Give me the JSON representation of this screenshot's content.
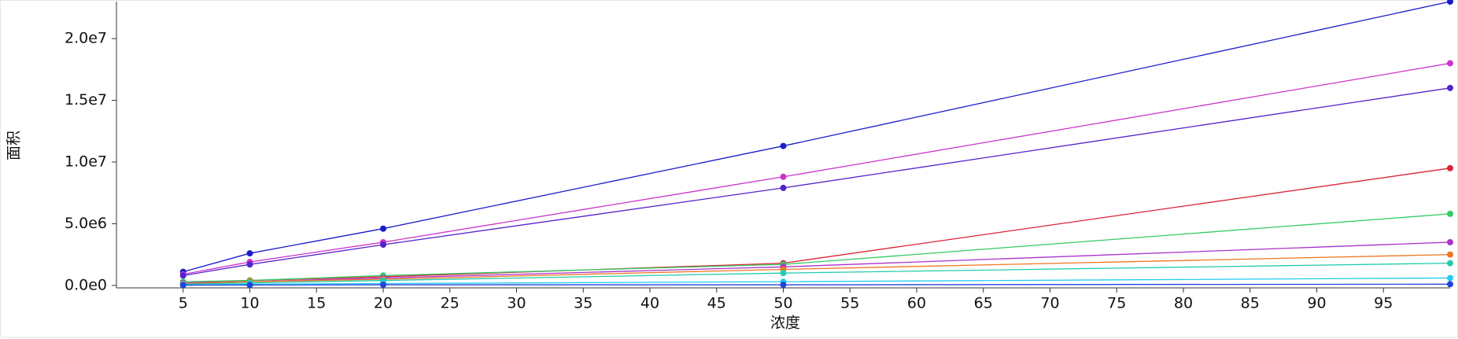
{
  "chart_data": {
    "type": "line",
    "x_label": "浓度",
    "y_label": "面积",
    "x": [
      5,
      10,
      20,
      50,
      100
    ],
    "xlim": [
      0,
      100
    ],
    "xticks": [
      5,
      10,
      15,
      20,
      25,
      30,
      35,
      40,
      45,
      50,
      55,
      60,
      65,
      70,
      75,
      80,
      85,
      90,
      95
    ],
    "ylim": [
      -200000,
      23000000
    ],
    "yticks": [
      {
        "value": 0,
        "label": "0.0e0"
      },
      {
        "value": 5000000,
        "label": "5.0e6"
      },
      {
        "value": 10000000,
        "label": "1.0e7"
      },
      {
        "value": 15000000,
        "label": "1.5e7"
      },
      {
        "value": 20000000,
        "label": "2.0e7"
      }
    ],
    "series": [
      {
        "color": "#1a1acc",
        "values": [
          1100000,
          2600000,
          4600000,
          11300000,
          23000000
        ]
      },
      {
        "color": "#cc33cc",
        "values": [
          900000,
          1900000,
          3500000,
          8800000,
          18000000
        ]
      },
      {
        "color": "#5522cc",
        "values": [
          800000,
          1700000,
          3300000,
          7900000,
          16000000
        ]
      },
      {
        "color": "#dd2233",
        "values": [
          200000,
          400000,
          700000,
          1800000,
          9500000
        ]
      },
      {
        "color": "#33cc66",
        "values": [
          300000,
          400000,
          800000,
          1700000,
          5800000
        ]
      },
      {
        "color": "#aa33cc",
        "values": [
          200000,
          300000,
          600000,
          1500000,
          3500000
        ]
      },
      {
        "color": "#ee7722",
        "values": [
          150000,
          300000,
          500000,
          1300000,
          2500000
        ]
      },
      {
        "color": "#22ccaa",
        "values": [
          100000,
          200000,
          400000,
          1000000,
          1800000
        ]
      },
      {
        "color": "#22ccee",
        "values": [
          50000,
          100000,
          150000,
          300000,
          600000
        ]
      },
      {
        "color": "#2244dd",
        "values": [
          20000,
          30000,
          50000,
          50000,
          100000
        ]
      }
    ]
  }
}
